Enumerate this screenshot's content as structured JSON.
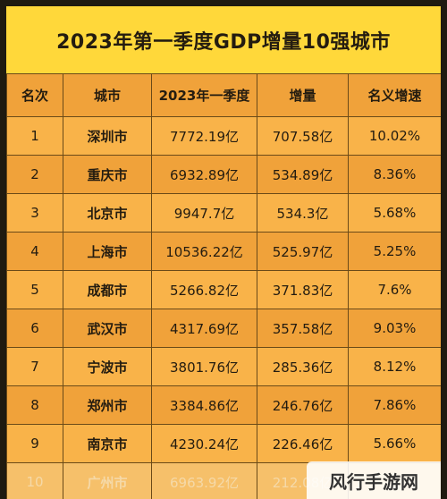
{
  "title": "2023年第一季度GDP增量10强城市",
  "headers": [
    "名次",
    "城市",
    "2023年一季度",
    "增量",
    "名义增速"
  ],
  "rows": [
    {
      "rank": "1",
      "city": "深圳市",
      "gdp": "7772.19亿",
      "increase": "707.58亿",
      "growth": "10.02%"
    },
    {
      "rank": "2",
      "city": "重庆市",
      "gdp": "6932.89亿",
      "increase": "534.89亿",
      "growth": "8.36%"
    },
    {
      "rank": "3",
      "city": "北京市",
      "gdp": "9947.7亿",
      "increase": "534.3亿",
      "growth": "5.68%"
    },
    {
      "rank": "4",
      "city": "上海市",
      "gdp": "10536.22亿",
      "increase": "525.97亿",
      "growth": "5.25%"
    },
    {
      "rank": "5",
      "city": "成都市",
      "gdp": "5266.82亿",
      "increase": "371.83亿",
      "growth": "7.6%"
    },
    {
      "rank": "6",
      "city": "武汉市",
      "gdp": "4317.69亿",
      "increase": "357.58亿",
      "growth": "9.03%"
    },
    {
      "rank": "7",
      "city": "宁波市",
      "gdp": "3801.76亿",
      "increase": "285.36亿",
      "growth": "8.12%"
    },
    {
      "rank": "8",
      "city": "郑州市",
      "gdp": "3384.86亿",
      "increase": "246.76亿",
      "growth": "7.86%"
    },
    {
      "rank": "9",
      "city": "南京市",
      "gdp": "4230.24亿",
      "increase": "226.46亿",
      "growth": "5.66%"
    },
    {
      "rank": "10",
      "city": "广州市",
      "gdp": "6963.92亿",
      "increase": "212.08亿",
      "growth": ""
    }
  ],
  "watermark": "风行手游网"
}
